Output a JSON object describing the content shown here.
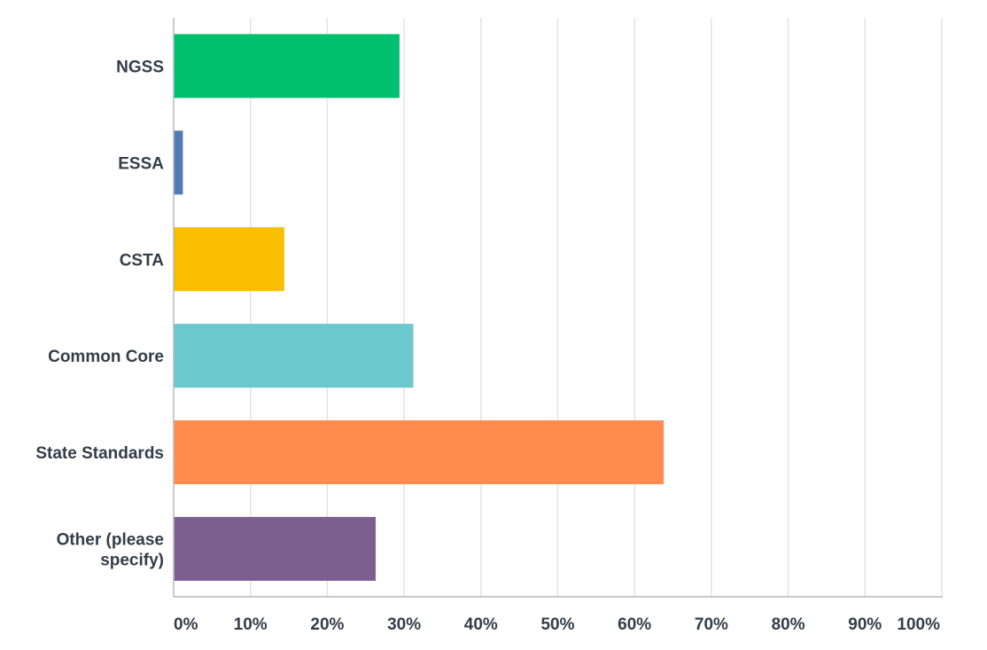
{
  "chart_data": {
    "type": "bar",
    "orientation": "horizontal",
    "categories": [
      [
        "NGSS"
      ],
      [
        "ESSA"
      ],
      [
        "CSTA"
      ],
      [
        "Common Core"
      ],
      [
        "State Standards"
      ],
      [
        "Other (please",
        "specify)"
      ]
    ],
    "values": [
      29.4,
      1.2,
      14.4,
      31.2,
      63.8,
      26.3
    ],
    "value_unit": "%",
    "colors": [
      "#00bf6f",
      "#507cb6",
      "#f9be00",
      "#6bc8cd",
      "#ff8b4f",
      "#7d5e90"
    ],
    "xlim": [
      0,
      100
    ],
    "xticks": [
      0,
      10,
      20,
      30,
      40,
      50,
      60,
      70,
      80,
      90,
      100
    ],
    "xtick_labels": [
      "0%",
      "10%",
      "20%",
      "30%",
      "40%",
      "50%",
      "60%",
      "70%",
      "80%",
      "90%",
      "100%"
    ],
    "grid": true,
    "legend": "none",
    "title": "",
    "xlabel": "",
    "ylabel": ""
  }
}
